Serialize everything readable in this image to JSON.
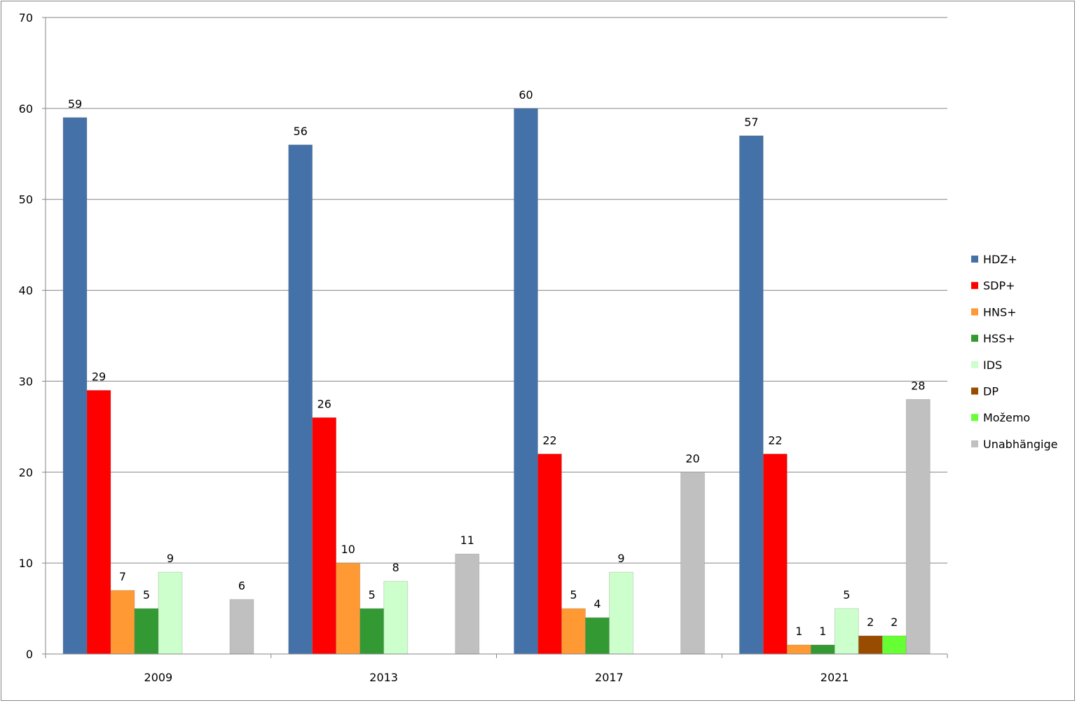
{
  "chart_data": {
    "type": "bar",
    "title": "",
    "xlabel": "",
    "ylabel": "",
    "ylim": [
      0,
      70
    ],
    "yticks": [
      0,
      10,
      20,
      30,
      40,
      50,
      60,
      70
    ],
    "grid": true,
    "legend_position": "right",
    "categories": [
      "2009",
      "2013",
      "2017",
      "2021"
    ],
    "series": [
      {
        "name": "HDZ+",
        "color": "#4472A8",
        "values": [
          59,
          56,
          60,
          57
        ]
      },
      {
        "name": "SDP+",
        "color": "#FF0000",
        "values": [
          29,
          26,
          22,
          22
        ]
      },
      {
        "name": "HNS+",
        "color": "#FF9933",
        "values": [
          7,
          10,
          5,
          1
        ]
      },
      {
        "name": "HSS+",
        "color": "#339933",
        "values": [
          5,
          5,
          4,
          1
        ]
      },
      {
        "name": "IDS",
        "color": "#CCFFCC",
        "values": [
          9,
          8,
          9,
          5
        ]
      },
      {
        "name": "DP",
        "color": "#994C00",
        "values": [
          null,
          null,
          null,
          2
        ]
      },
      {
        "name": "Možemo",
        "color": "#66FF33",
        "values": [
          null,
          null,
          null,
          2
        ]
      },
      {
        "name": "Unabhängige",
        "color": "#C0C0C0",
        "values": [
          6,
          11,
          20,
          28
        ]
      }
    ]
  }
}
